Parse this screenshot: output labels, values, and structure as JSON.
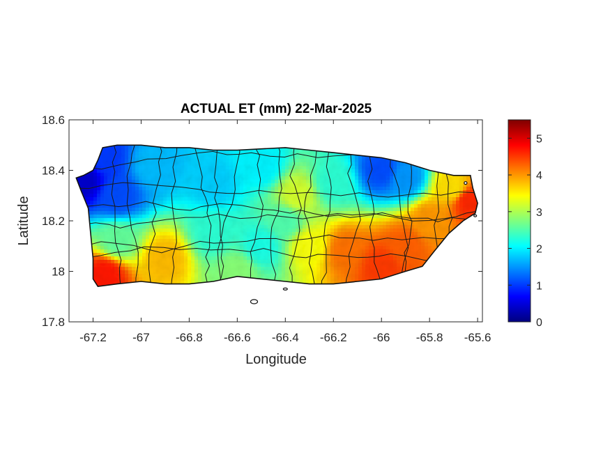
{
  "chart_data": {
    "type": "heatmap",
    "title": "ACTUAL ET (mm) 22-Mar-2025",
    "xlabel": "Longitude",
    "ylabel": "Latitude",
    "xlim": [
      -67.3,
      -65.58
    ],
    "ylim": [
      17.8,
      18.6
    ],
    "x_ticks": [
      -67.2,
      -67,
      -66.8,
      -66.6,
      -66.4,
      -66.2,
      -66,
      -65.8,
      -65.6
    ],
    "x_tick_labels": [
      "-67.2",
      "-67",
      "-66.8",
      "-66.6",
      "-66.4",
      "-66.2",
      "-66",
      "-65.8",
      "-65.6"
    ],
    "y_ticks": [
      17.8,
      18,
      18.2,
      18.4,
      18.6
    ],
    "y_tick_labels": [
      "17.8",
      "18",
      "18.2",
      "18.4",
      "18.6"
    ],
    "colorbar": {
      "colormap": "jet",
      "range": [
        0,
        5.5
      ],
      "ticks": [
        0,
        1,
        2,
        3,
        4,
        5
      ],
      "tick_labels": [
        "0",
        "1",
        "2",
        "3",
        "4",
        "5"
      ]
    },
    "colormap_stops": [
      "#00007f",
      "#0000ff",
      "#007fff",
      "#00ffff",
      "#7fff7f",
      "#ffff00",
      "#ff7f00",
      "#ff0000",
      "#7f0000"
    ],
    "island_outline": [
      [
        -67.27,
        18.37
      ],
      [
        -67.24,
        18.38
      ],
      [
        -67.2,
        18.4
      ],
      [
        -67.18,
        18.44
      ],
      [
        -67.16,
        18.49
      ],
      [
        -67.1,
        18.5
      ],
      [
        -67.0,
        18.5
      ],
      [
        -66.9,
        18.49
      ],
      [
        -66.8,
        18.49
      ],
      [
        -66.7,
        18.48
      ],
      [
        -66.6,
        18.48
      ],
      [
        -66.5,
        18.485
      ],
      [
        -66.4,
        18.49
      ],
      [
        -66.3,
        18.48
      ],
      [
        -66.2,
        18.47
      ],
      [
        -66.1,
        18.46
      ],
      [
        -66.0,
        18.45
      ],
      [
        -65.9,
        18.43
      ],
      [
        -65.8,
        18.4
      ],
      [
        -65.7,
        18.38
      ],
      [
        -65.63,
        18.38
      ],
      [
        -65.62,
        18.33
      ],
      [
        -65.6,
        18.27
      ],
      [
        -65.61,
        18.23
      ],
      [
        -65.66,
        18.2
      ],
      [
        -65.72,
        18.15
      ],
      [
        -65.78,
        18.08
      ],
      [
        -65.83,
        18.02
      ],
      [
        -65.9,
        18.0
      ],
      [
        -66.0,
        17.97
      ],
      [
        -66.1,
        17.96
      ],
      [
        -66.2,
        17.95
      ],
      [
        -66.3,
        17.95
      ],
      [
        -66.4,
        17.96
      ],
      [
        -66.5,
        17.97
      ],
      [
        -66.6,
        17.98
      ],
      [
        -66.7,
        17.96
      ],
      [
        -66.8,
        17.95
      ],
      [
        -66.9,
        17.95
      ],
      [
        -67.0,
        17.96
      ],
      [
        -67.1,
        17.95
      ],
      [
        -67.18,
        17.94
      ],
      [
        -67.2,
        17.97
      ],
      [
        -67.2,
        18.05
      ],
      [
        -67.21,
        18.15
      ],
      [
        -67.22,
        18.25
      ],
      [
        -67.25,
        18.32
      ]
    ],
    "et_field": [
      {
        "lon": -67.24,
        "lat": 18.36,
        "value": 0.4
      },
      {
        "lon": -67.15,
        "lat": 18.45,
        "value": 1.0
      },
      {
        "lon": -67.1,
        "lat": 18.3,
        "value": 1.1
      },
      {
        "lon": -66.95,
        "lat": 18.42,
        "value": 1.7
      },
      {
        "lon": -66.7,
        "lat": 18.35,
        "value": 1.8
      },
      {
        "lon": -66.5,
        "lat": 18.42,
        "value": 2.0
      },
      {
        "lon": -66.35,
        "lat": 18.3,
        "value": 3.2
      },
      {
        "lon": -66.2,
        "lat": 18.35,
        "value": 2.3
      },
      {
        "lon": -66.0,
        "lat": 18.4,
        "value": 1.1
      },
      {
        "lon": -65.9,
        "lat": 18.37,
        "value": 1.5
      },
      {
        "lon": -65.7,
        "lat": 18.33,
        "value": 3.6
      },
      {
        "lon": -65.64,
        "lat": 18.28,
        "value": 4.6
      },
      {
        "lon": -65.8,
        "lat": 18.2,
        "value": 4.0
      },
      {
        "lon": -65.9,
        "lat": 18.1,
        "value": 4.3
      },
      {
        "lon": -66.0,
        "lat": 18.02,
        "value": 4.5
      },
      {
        "lon": -66.15,
        "lat": 18.08,
        "value": 4.2
      },
      {
        "lon": -66.3,
        "lat": 18.1,
        "value": 3.4
      },
      {
        "lon": -66.5,
        "lat": 18.1,
        "value": 2.2
      },
      {
        "lon": -66.7,
        "lat": 18.15,
        "value": 2.3
      },
      {
        "lon": -66.9,
        "lat": 18.05,
        "value": 3.8
      },
      {
        "lon": -67.15,
        "lat": 17.99,
        "value": 4.7
      },
      {
        "lon": -67.1,
        "lat": 18.12,
        "value": 2.6
      },
      {
        "lon": -66.6,
        "lat": 18.0,
        "value": 2.8
      },
      {
        "lon": -66.4,
        "lat": 18.2,
        "value": 2.5
      }
    ]
  }
}
